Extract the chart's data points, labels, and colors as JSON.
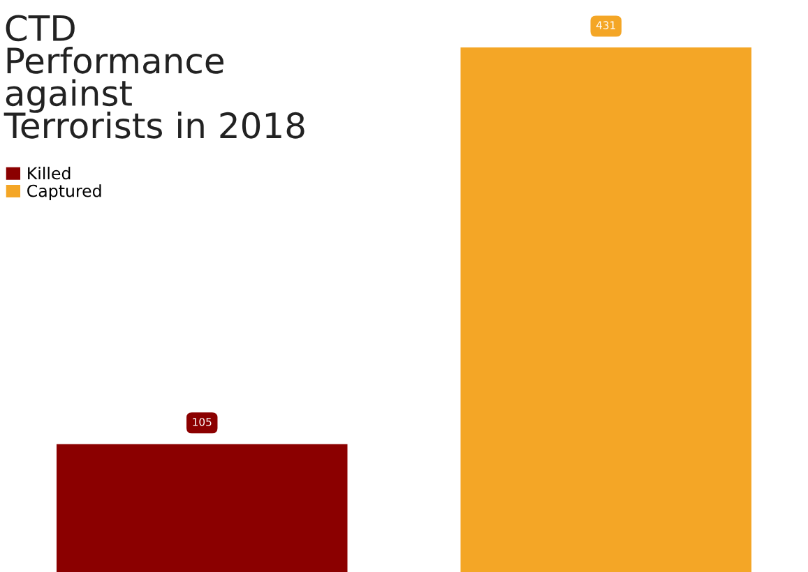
{
  "chart_data": {
    "type": "bar",
    "title": "CTD\nPerformance\nagainst\nTerrorists in 2018",
    "categories": [
      null
    ],
    "series": [
      {
        "name": "Killed",
        "color": "#8b0000",
        "values": [
          105
        ]
      },
      {
        "name": "Captured",
        "color": "#f4a626",
        "values": [
          431
        ]
      }
    ],
    "ylim": [
      0,
      470
    ],
    "data_labels": true,
    "legend": "top left"
  }
}
